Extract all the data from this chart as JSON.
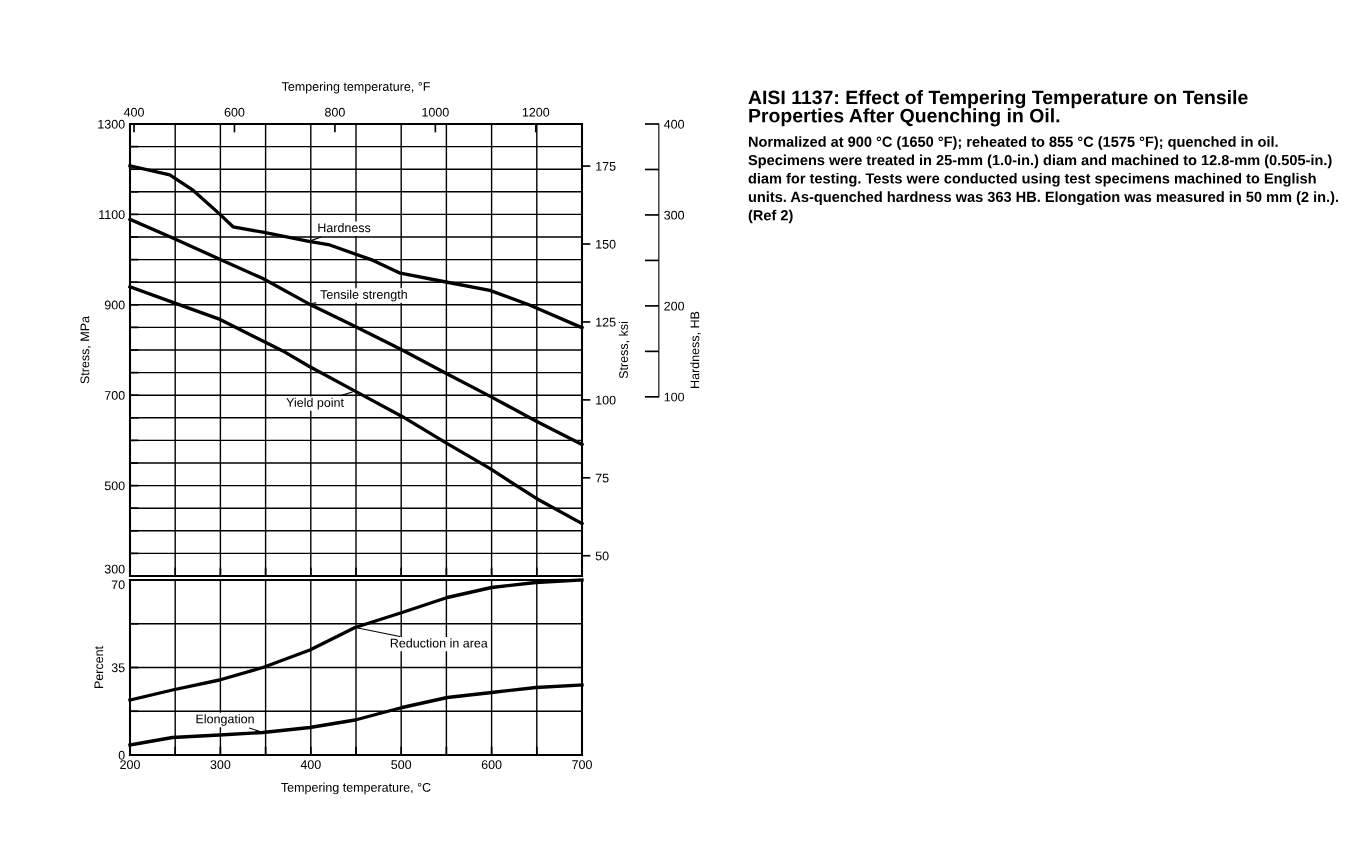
{
  "chart_data": [
    {
      "type": "line",
      "ylabel": "Stress, MPa",
      "y2label": "Stress, ksi",
      "y3label": "Hardness, HB",
      "x2label": "Tempering temperature, °F",
      "xlim": [
        200,
        700
      ],
      "xticks": [
        {
          "value": 200,
          "label": null
        },
        {
          "value": 250,
          "label": null
        },
        {
          "value": 300,
          "label": null
        },
        {
          "value": 350,
          "label": null
        },
        {
          "value": 400,
          "label": null
        },
        {
          "value": 450,
          "label": null
        },
        {
          "value": 500,
          "label": null
        },
        {
          "value": 550,
          "label": null
        },
        {
          "value": 600,
          "label": null
        },
        {
          "value": 650,
          "label": null
        },
        {
          "value": 700,
          "label": null
        }
      ],
      "x2lim": [
        392,
        1292
      ],
      "x2ticks": [
        400,
        600,
        800,
        1000,
        1200
      ],
      "ylim": [
        300,
        1300
      ],
      "yticks": [
        300,
        {
          "value": 350,
          "label": null
        },
        {
          "value": 400,
          "label": null
        },
        {
          "value": 450,
          "label": null
        },
        500,
        {
          "value": 550,
          "label": null
        },
        {
          "value": 600,
          "label": null
        },
        {
          "value": 650,
          "label": null
        },
        700,
        {
          "value": 750,
          "label": null
        },
        {
          "value": 800,
          "label": null
        },
        {
          "value": 850,
          "label": null
        },
        900,
        {
          "value": 950,
          "label": null
        },
        {
          "value": 1000,
          "label": null
        },
        {
          "value": 1050,
          "label": null
        },
        1100,
        {
          "value": 1150,
          "label": null
        },
        {
          "value": 1200,
          "label": null
        },
        {
          "value": 1250,
          "label": null
        },
        1300
      ],
      "y2lim": [
        43.5,
        188.5
      ],
      "y2ticks": [
        50,
        75,
        100,
        125,
        150,
        175
      ],
      "y3lim": [
        -97,
        400
      ],
      "y3ticks": [
        100,
        {
          "value": 150,
          "label": null
        },
        200,
        {
          "value": 250,
          "label": null
        },
        300,
        {
          "value": 350,
          "label": null
        },
        400
      ],
      "grid": true,
      "tick_labels": "y",
      "series": [
        {
          "name": "Hardness",
          "color": "#000000",
          "axis": "y3",
          "x": [
            200,
            244,
            270,
            298,
            314,
            347,
            398,
            421,
            469,
            499,
            551,
            598,
            642,
            700
          ],
          "values": [
            354,
            344,
            327,
            302,
            287,
            281,
            271,
            267,
            250,
            236,
            226,
            217,
            201,
            176
          ]
        },
        {
          "name": "Tensile strength",
          "color": "#000000",
          "x": [
            200,
            246,
            298,
            347,
            398,
            443,
            499,
            551,
            598,
            650,
            700
          ],
          "values": [
            1089,
            1049,
            1002,
            958,
            902,
            858,
            802,
            747,
            698,
            642,
            591
          ]
        },
        {
          "name": "Yield point",
          "color": "#000000",
          "x": [
            200,
            252,
            298,
            347,
            369,
            398,
            449,
            501,
            551,
            598,
            650,
            700
          ],
          "values": [
            940,
            902,
            869,
            820,
            798,
            764,
            709,
            653,
            593,
            538,
            471,
            416
          ]
        }
      ]
    },
    {
      "type": "line",
      "xlabel": "Tempering temperature, °C",
      "ylabel": "Percent",
      "xlim": [
        200,
        700
      ],
      "xticks": [
        200,
        {
          "value": 250,
          "label": null
        },
        300,
        {
          "value": 350,
          "label": null
        },
        400,
        {
          "value": 450,
          "label": null
        },
        500,
        {
          "value": 550,
          "label": null
        },
        600,
        {
          "value": 650,
          "label": null
        },
        700
      ],
      "ylim": [
        0,
        70
      ],
      "yticks": [
        0,
        {
          "value": 17.5,
          "label": null
        },
        35,
        {
          "value": 52.5,
          "label": null
        },
        70
      ],
      "grid": true,
      "series": [
        {
          "name": "Reduction in area",
          "color": "#000000",
          "x": [
            200,
            247,
            299,
            347,
            399,
            449,
            501,
            551,
            600,
            649,
            700
          ],
          "values": [
            22,
            26,
            30,
            35,
            42,
            51,
            57,
            63,
            67,
            69,
            70
          ]
        },
        {
          "name": "Elongation",
          "color": "#000000",
          "x": [
            200,
            247,
            299,
            347,
            399,
            449,
            501,
            551,
            600,
            649,
            700
          ],
          "values": [
            4,
            7,
            8,
            9,
            11,
            14,
            19,
            23,
            25,
            27,
            28
          ]
        }
      ]
    },
    {
      "type": "other",
      "title": "AISI 1137: Effect of Tempering Temperature on Tensile Properties After Quenching in Oil.",
      "subtitle": "Normalized at 900 °C (1650 °F); reheated to 855 °C (1575 °F); quenched in oil. Specimens were treated in 25-mm (1.0-in.) diam and machined to 12.8-mm (0.505-in.) diam for testing. Tests were conducted using test specimens machined to English units. As-quenched hardness was 363 HB. Elongation was measured in 50 mm (2 in.). (Ref 2)"
    }
  ]
}
